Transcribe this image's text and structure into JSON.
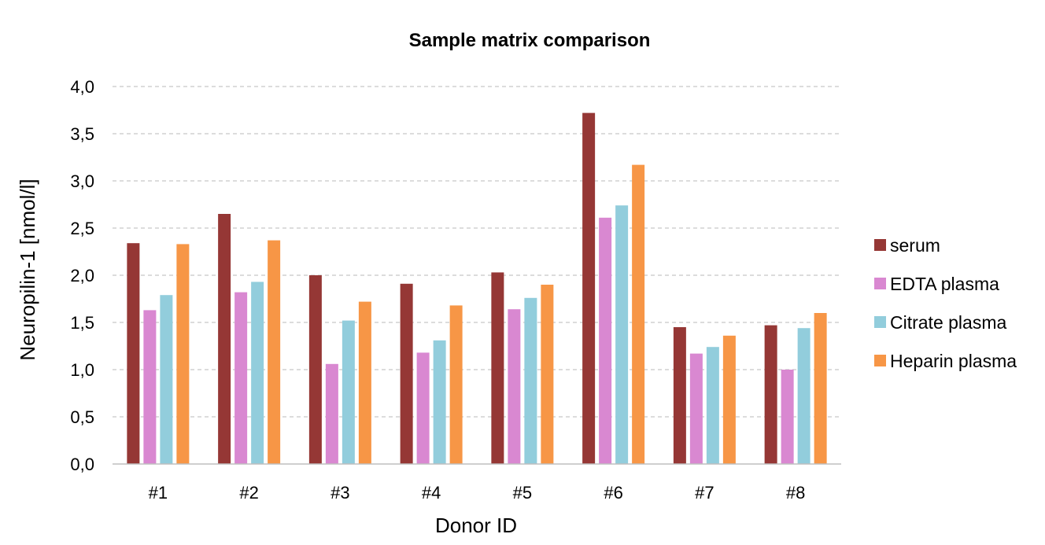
{
  "chart_data": {
    "type": "bar",
    "title": "Sample matrix comparison",
    "xlabel": "Donor ID",
    "ylabel": "Neuropilin-1 [nmol/l]",
    "categories": [
      "#1",
      "#2",
      "#3",
      "#4",
      "#5",
      "#6",
      "#7",
      "#8"
    ],
    "ylim": [
      0,
      4
    ],
    "yticks": [
      "0,0",
      "0,5",
      "1,0",
      "1,5",
      "2,0",
      "2,5",
      "3,0",
      "3,5",
      "4,0"
    ],
    "grid": true,
    "legend_position": "right",
    "series": [
      {
        "name": "serum",
        "color": "#953735",
        "values": [
          2.34,
          2.65,
          2.0,
          1.91,
          2.03,
          3.72,
          1.45,
          1.47
        ]
      },
      {
        "name": "EDTA plasma",
        "color": "#d988d1",
        "values": [
          1.63,
          1.82,
          1.06,
          1.18,
          1.64,
          2.61,
          1.17,
          1.0
        ]
      },
      {
        "name": "Citrate plasma",
        "color": "#92cddc",
        "values": [
          1.79,
          1.93,
          1.52,
          1.31,
          1.76,
          2.74,
          1.24,
          1.44
        ]
      },
      {
        "name": "Heparin plasma",
        "color": "#f79646",
        "values": [
          2.33,
          2.37,
          1.72,
          1.68,
          1.9,
          3.17,
          1.36,
          1.6
        ]
      }
    ]
  }
}
